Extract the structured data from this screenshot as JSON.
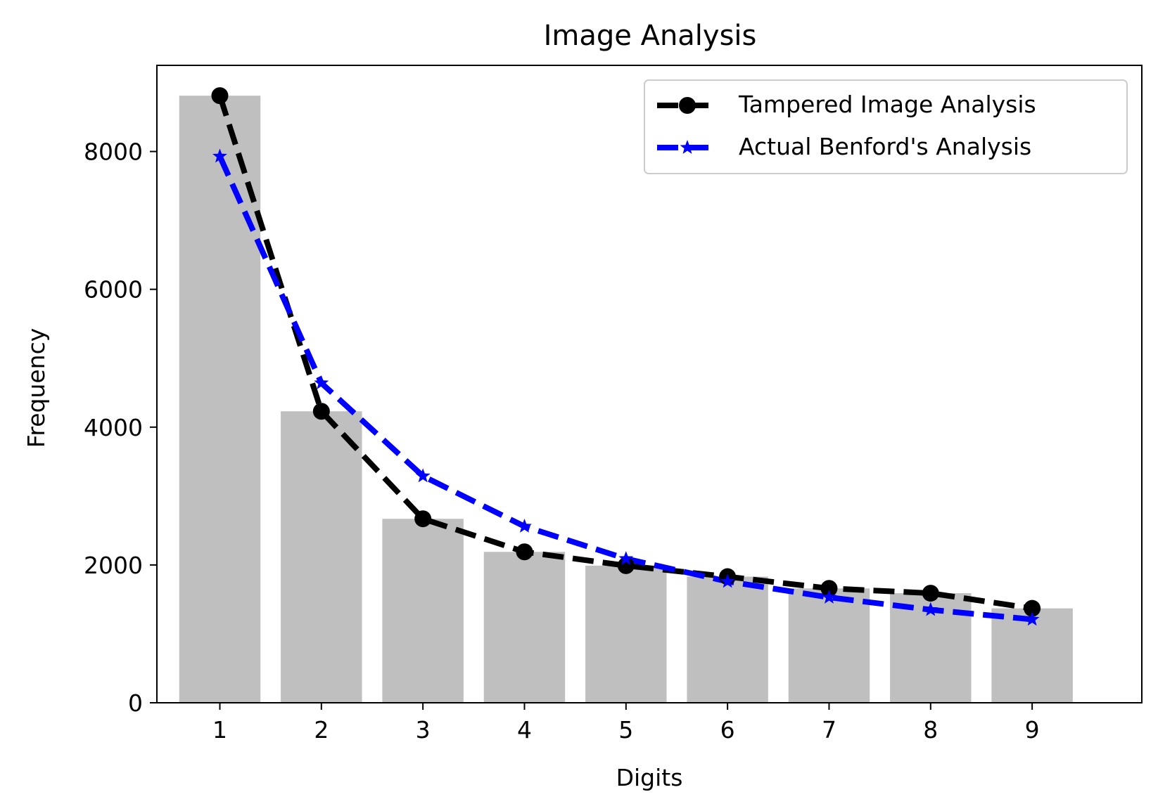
{
  "chart_data": {
    "type": "bar",
    "title": "Image Analysis",
    "xlabel": "Digits",
    "ylabel": "Frequency",
    "categories": [
      "1",
      "2",
      "3",
      "4",
      "5",
      "6",
      "7",
      "8",
      "9"
    ],
    "x": [
      1,
      2,
      3,
      4,
      5,
      6,
      7,
      8,
      9
    ],
    "bars": {
      "values": [
        8810,
        4230,
        2670,
        2190,
        1990,
        1830,
        1660,
        1590,
        1370
      ],
      "color": "#bfbfbf"
    },
    "series": [
      {
        "name": "Tampered Image Analysis",
        "type": "line",
        "style": "dashed",
        "marker": "circle",
        "color": "#000000",
        "values": [
          8810,
          4230,
          2670,
          2190,
          1990,
          1830,
          1660,
          1590,
          1370
        ]
      },
      {
        "name": "Actual Benford's Analysis",
        "type": "line",
        "style": "dashed",
        "marker": "star",
        "color": "#0000ff",
        "values": [
          7930,
          4640,
          3290,
          2560,
          2090,
          1760,
          1530,
          1350,
          1210
        ]
      }
    ],
    "xlim": [
      0.38,
      10.08
    ],
    "ylim": [
      0,
      9250
    ],
    "yticks": [
      0,
      2000,
      4000,
      6000,
      8000
    ],
    "xticks": [
      1,
      2,
      3,
      4,
      5,
      6,
      7,
      8,
      9
    ],
    "grid": false,
    "legend_position": "top-right"
  }
}
